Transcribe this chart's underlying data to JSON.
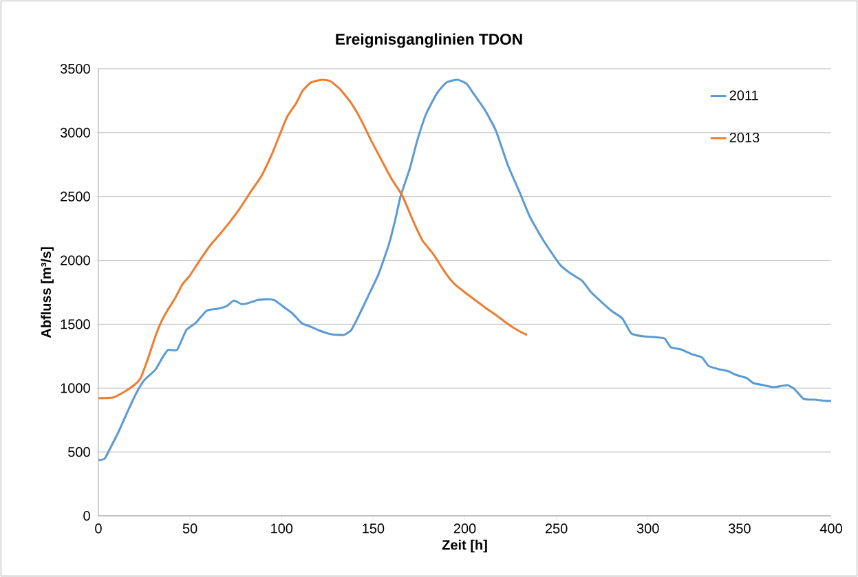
{
  "chart_data": {
    "type": "line",
    "title": "Ereignisganglinien TDON",
    "xlabel": "Zeit [h]",
    "ylabel": "Abfluss [m³/s]",
    "xlim": [
      0,
      400
    ],
    "ylim": [
      0,
      3500
    ],
    "xticks": [
      0,
      50,
      100,
      150,
      200,
      250,
      300,
      350,
      400
    ],
    "yticks": [
      0,
      500,
      1000,
      1500,
      2000,
      2500,
      3000,
      3500
    ],
    "grid": "y",
    "legend": "top right",
    "series": [
      {
        "name": "2011",
        "color": "#5b9bd5",
        "x": [
          0,
          3.4,
          6.4,
          11,
          16,
          21,
          25,
          31,
          35,
          38,
          43,
          48,
          53,
          59,
          65,
          70,
          74,
          78,
          81.5,
          87,
          93,
          96.5,
          102,
          106,
          111,
          115,
          120,
          127,
          134,
          138,
          141.6,
          147,
          153,
          158.5,
          162,
          165,
          170,
          174,
          179,
          185,
          190,
          196,
          201,
          205,
          211,
          217,
          223.5,
          230,
          235.5,
          243,
          252,
          258,
          264,
          269,
          275,
          280.6,
          286,
          291,
          297.5,
          303,
          309,
          312.5,
          318,
          324,
          329.6,
          333,
          339,
          344,
          348,
          354,
          357.5,
          363,
          369,
          376,
          380,
          385,
          391,
          397,
          400
        ],
        "values": [
          436,
          447,
          528,
          657,
          818,
          969,
          1061,
          1142,
          1239,
          1298,
          1300,
          1454,
          1508,
          1605,
          1621,
          1642,
          1685,
          1658,
          1664,
          1690,
          1696,
          1685,
          1626,
          1583,
          1508,
          1486,
          1454,
          1422,
          1416,
          1454,
          1551,
          1712,
          1895,
          2122,
          2315,
          2504,
          2719,
          2935,
          3150,
          3312,
          3392,
          3414,
          3382,
          3301,
          3177,
          3015,
          2746,
          2531,
          2342,
          2154,
          1965,
          1895,
          1841,
          1750,
          1669,
          1599,
          1545,
          1427,
          1405,
          1400,
          1389,
          1319,
          1303,
          1265,
          1239,
          1174,
          1147,
          1131,
          1104,
          1077,
          1039,
          1023,
          1007,
          1023,
          991,
          915,
          910,
          899,
          899
        ]
      },
      {
        "name": "2013",
        "color": "#ed7d31",
        "x": [
          0,
          8,
          14,
          19.5,
          23,
          27,
          31,
          34.5,
          38,
          42,
          46,
          49.6,
          55,
          61,
          66.5,
          72,
          78,
          83.4,
          89,
          94.6,
          98.4,
          103,
          108,
          111.5,
          116,
          122,
          126.6,
          132,
          138,
          143.5,
          149,
          155,
          160,
          166,
          171.6,
          177,
          183,
          188.5,
          194,
          200,
          205,
          211,
          217,
          224,
          230,
          234
        ],
        "values": [
          921,
          926,
          969,
          1023,
          1077,
          1228,
          1400,
          1524,
          1615,
          1707,
          1815,
          1874,
          1992,
          2116,
          2208,
          2305,
          2423,
          2542,
          2660,
          2827,
          2962,
          3123,
          3231,
          3328,
          3392,
          3414,
          3403,
          3339,
          3231,
          3096,
          2935,
          2773,
          2639,
          2504,
          2315,
          2154,
          2046,
          1922,
          1820,
          1750,
          1696,
          1632,
          1572,
          1497,
          1443,
          1416
        ]
      }
    ]
  }
}
